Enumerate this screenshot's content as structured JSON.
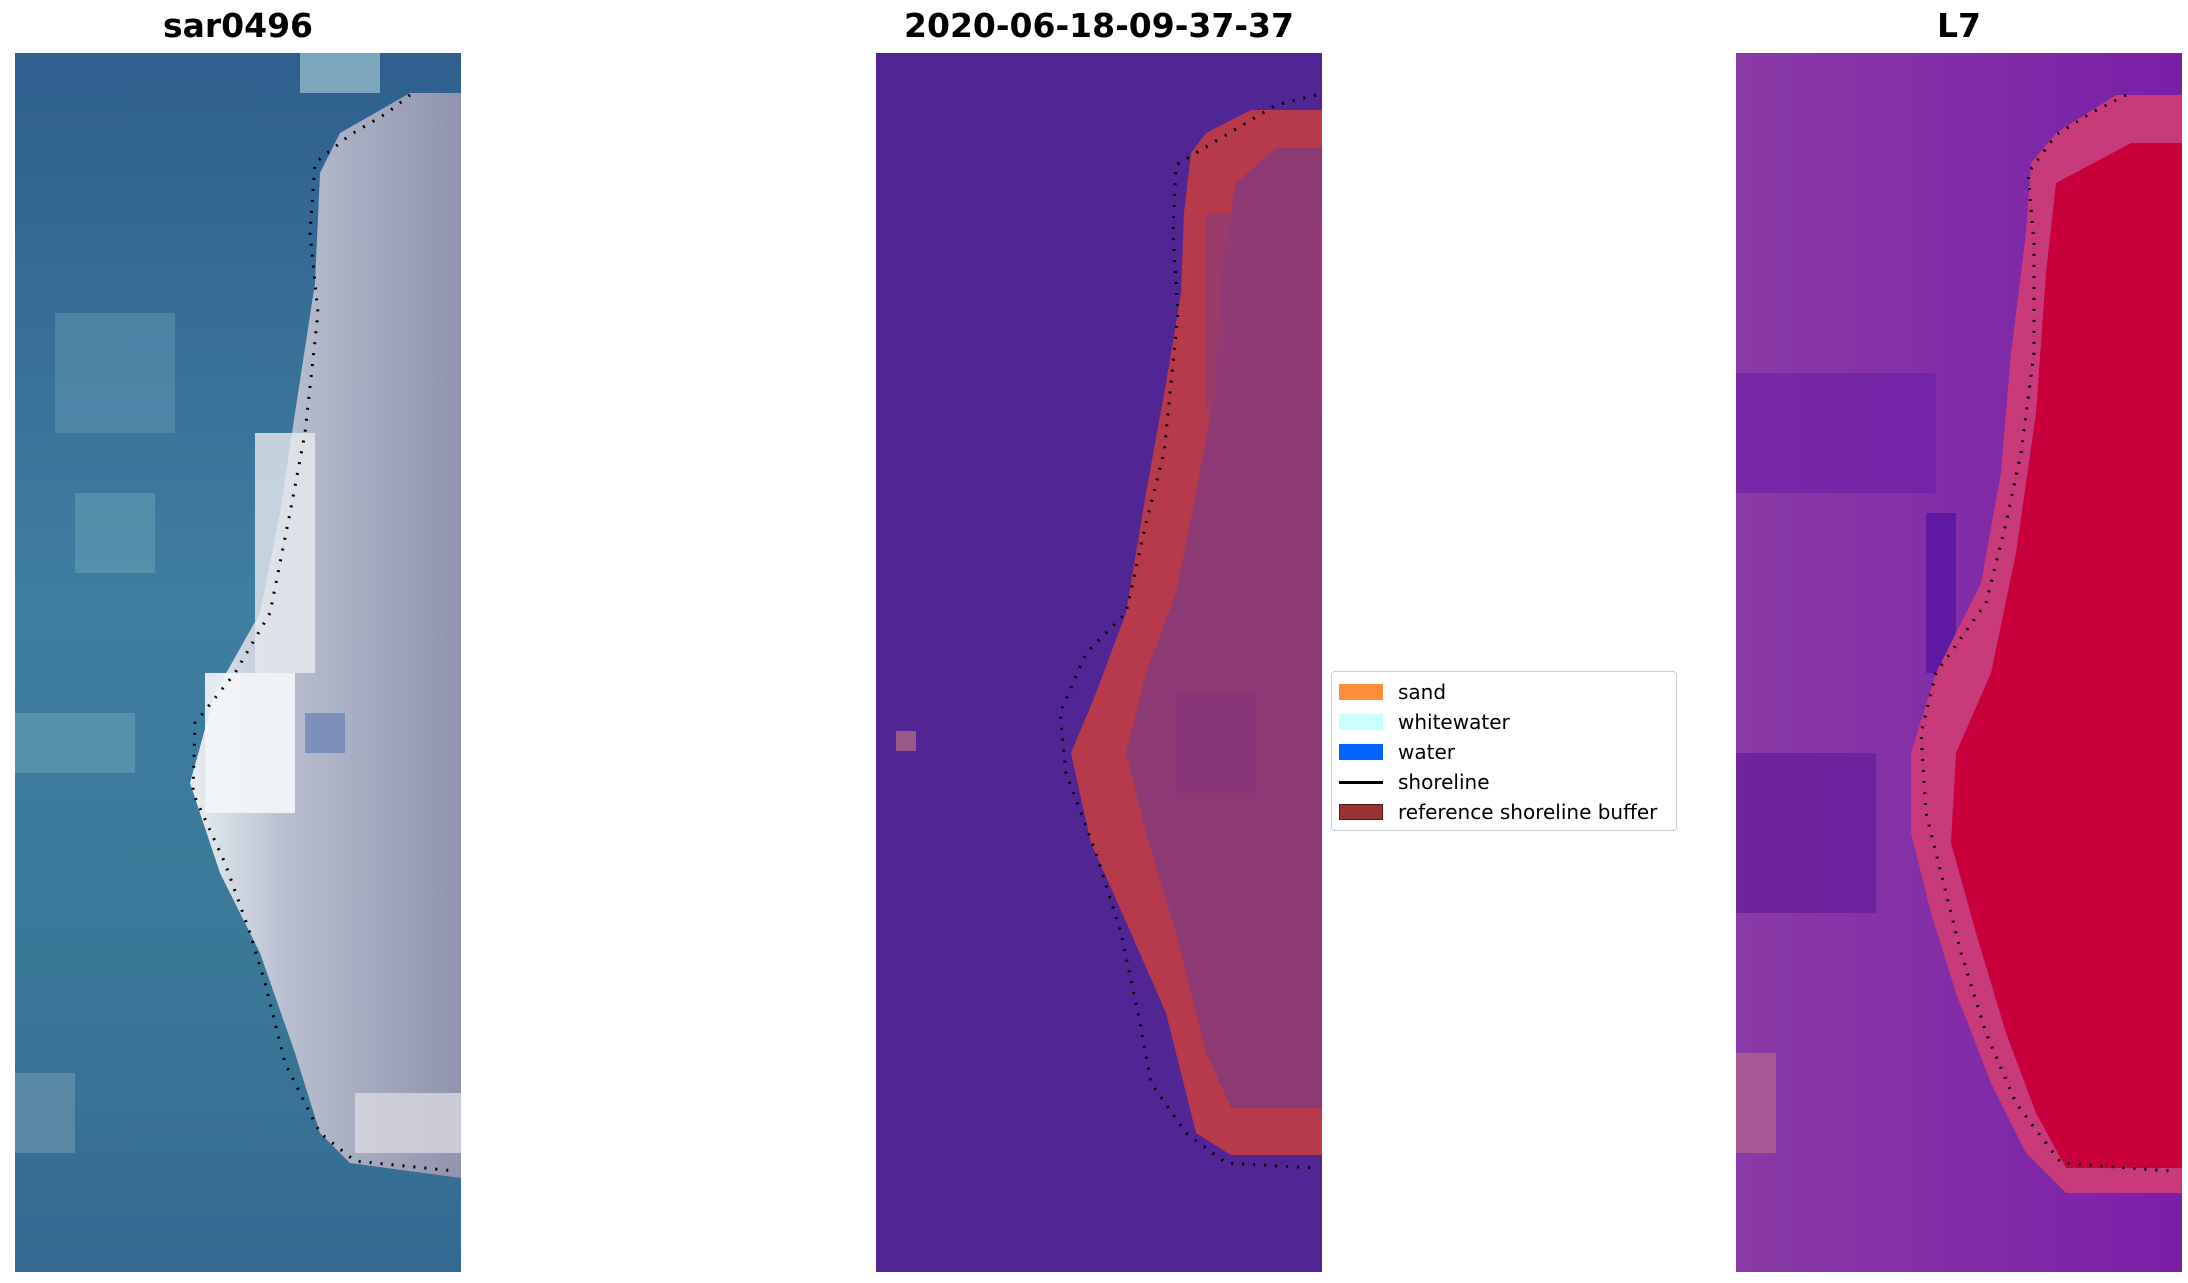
{
  "panels": [
    {
      "title": "sar0496"
    },
    {
      "title": "2020-06-18-09-37-37"
    },
    {
      "title": "L7"
    }
  ],
  "legend": {
    "items": [
      {
        "label": "sand",
        "color": "#ff8c3c",
        "kind": "patch"
      },
      {
        "label": "whitewater",
        "color": "#c8ffff",
        "kind": "patch"
      },
      {
        "label": "water",
        "color": "#0064ff",
        "kind": "patch"
      },
      {
        "label": "shoreline",
        "color": "#000000",
        "kind": "line"
      },
      {
        "label": "reference shoreline buffer",
        "color": "#993333",
        "kind": "patch"
      }
    ]
  }
}
